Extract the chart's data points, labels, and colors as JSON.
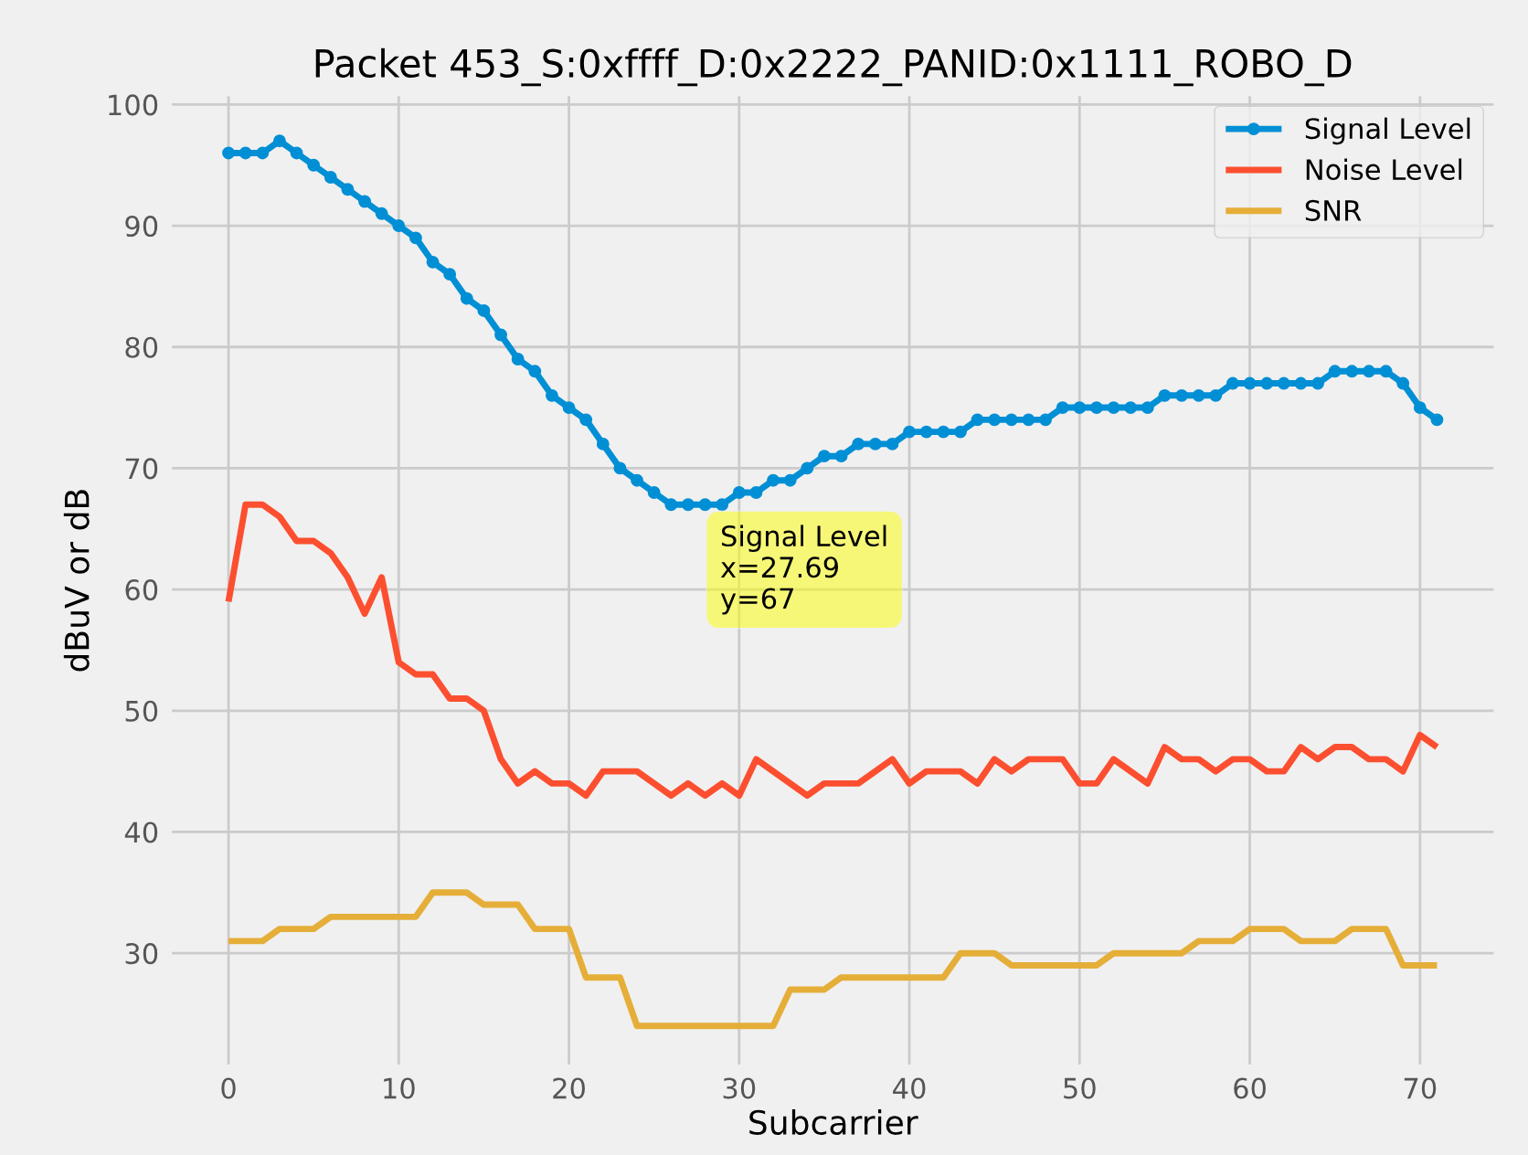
{
  "chart_data": {
    "type": "line",
    "title": "Packet 453_S:0xffff_D:0x2222_PANID:0x1111_ROBO_D",
    "xlabel": "Subcarrier",
    "ylabel": "dBuV or dB",
    "x": [
      0,
      1,
      2,
      3,
      4,
      5,
      6,
      7,
      8,
      9,
      10,
      11,
      12,
      13,
      14,
      15,
      16,
      17,
      18,
      19,
      20,
      21,
      22,
      23,
      24,
      25,
      26,
      27,
      28,
      29,
      30,
      31,
      32,
      33,
      34,
      35,
      36,
      37,
      38,
      39,
      40,
      41,
      42,
      43,
      44,
      45,
      46,
      47,
      48,
      49,
      50,
      51,
      52,
      53,
      54,
      55,
      56,
      57,
      58,
      59,
      60,
      61,
      62,
      63,
      64,
      65,
      66,
      67,
      68,
      69,
      70,
      71
    ],
    "series": [
      {
        "name": "Signal Level",
        "color": "#008fd5",
        "marker": "circle",
        "values": [
          96,
          96,
          96,
          97,
          96,
          95,
          94,
          93,
          92,
          91,
          90,
          89,
          87,
          86,
          84,
          83,
          81,
          79,
          78,
          76,
          75,
          74,
          72,
          70,
          69,
          68,
          67,
          67,
          67,
          67,
          68,
          68,
          69,
          69,
          70,
          71,
          71,
          72,
          72,
          72,
          73,
          73,
          73,
          73,
          74,
          74,
          74,
          74,
          74,
          75,
          75,
          75,
          75,
          75,
          75,
          76,
          76,
          76,
          76,
          77,
          77,
          77,
          77,
          77,
          77,
          78,
          78,
          78,
          78,
          77,
          75,
          74
        ]
      },
      {
        "name": "Noise Level",
        "color": "#fc4f30",
        "marker": "none",
        "values": [
          59,
          67,
          67,
          66,
          64,
          64,
          63,
          61,
          58,
          61,
          54,
          53,
          53,
          51,
          51,
          50,
          46,
          44,
          45,
          44,
          44,
          43,
          45,
          45,
          45,
          44,
          43,
          44,
          43,
          44,
          43,
          46,
          45,
          44,
          43,
          44,
          44,
          44,
          45,
          46,
          44,
          45,
          45,
          45,
          44,
          46,
          45,
          46,
          46,
          46,
          44,
          44,
          46,
          45,
          44,
          47,
          46,
          46,
          45,
          46,
          46,
          45,
          45,
          47,
          46,
          47,
          47,
          46,
          46,
          45,
          48,
          47
        ]
      },
      {
        "name": "SNR",
        "color": "#e5ae38",
        "marker": "none",
        "values": [
          31,
          31,
          31,
          32,
          32,
          32,
          33,
          33,
          33,
          33,
          33,
          33,
          35,
          35,
          35,
          34,
          34,
          34,
          32,
          32,
          32,
          28,
          28,
          28,
          24,
          24,
          24,
          24,
          24,
          24,
          24,
          24,
          24,
          27,
          27,
          27,
          28,
          28,
          28,
          28,
          28,
          28,
          28,
          30,
          30,
          30,
          29,
          29,
          29,
          29,
          29,
          29,
          30,
          30,
          30,
          30,
          30,
          31,
          31,
          31,
          32,
          32,
          32,
          31,
          31,
          31,
          32,
          32,
          32,
          29,
          29,
          29
        ]
      }
    ],
    "xlim": [
      -3.55,
      74.55
    ],
    "xticks": [
      0,
      10,
      20,
      30,
      40,
      50,
      60,
      70
    ],
    "ylim": [
      20.5,
      101
    ],
    "yticks": [
      30,
      40,
      50,
      60,
      70,
      80,
      90,
      100
    ],
    "annotations": [
      {
        "text": "Signal Level\nx=27.69\ny=67",
        "x": 27.69,
        "y": 67
      }
    ],
    "grid": true,
    "legend": "top right",
    "line_style": "solid"
  }
}
